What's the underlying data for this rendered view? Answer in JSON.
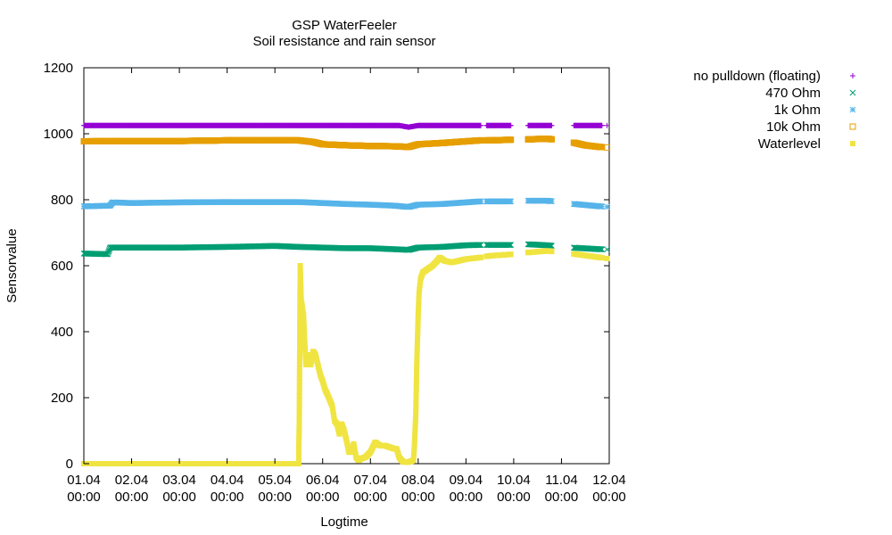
{
  "chart_data": {
    "type": "scatter",
    "title": "GSP WaterFeeler",
    "subtitle": "Soil resistance and rain sensor",
    "xlabel": "Logtime",
    "ylabel": "Sensorvalue",
    "xlim": [
      "01.04 00:00",
      "12.04 00:00"
    ],
    "ylim": [
      0,
      1200
    ],
    "x_unit": "days since 01.04 00:00",
    "x_ticks": [
      {
        "line1": "01.04",
        "line2": "00:00",
        "day": 0
      },
      {
        "line1": "02.04",
        "line2": "00:00",
        "day": 1
      },
      {
        "line1": "03.04",
        "line2": "00:00",
        "day": 2
      },
      {
        "line1": "04.04",
        "line2": "00:00",
        "day": 3
      },
      {
        "line1": "05.04",
        "line2": "00:00",
        "day": 4
      },
      {
        "line1": "06.04",
        "line2": "00:00",
        "day": 5
      },
      {
        "line1": "07.04",
        "line2": "00:00",
        "day": 6
      },
      {
        "line1": "08.04",
        "line2": "00:00",
        "day": 7
      },
      {
        "line1": "09.04",
        "line2": "00:00",
        "day": 8
      },
      {
        "line1": "10.04",
        "line2": "00:00",
        "day": 9
      },
      {
        "line1": "11.04",
        "line2": "00:00",
        "day": 10
      },
      {
        "line1": "12.04",
        "line2": "00:00",
        "day": 11
      }
    ],
    "y_ticks": [
      0,
      200,
      400,
      600,
      800,
      1000,
      1200
    ],
    "y_tick_labels": [
      "0",
      "200",
      "400",
      "600",
      "800",
      "1000",
      "1200"
    ],
    "grid": false,
    "legend_position": "outside-right-top",
    "series": [
      {
        "name": "no pulldown (floating)",
        "color": "#9400d3",
        "marker": "plus",
        "points": [
          [
            0,
            1025
          ],
          [
            1,
            1025
          ],
          [
            2,
            1025
          ],
          [
            3,
            1025
          ],
          [
            4,
            1025
          ],
          [
            5,
            1025
          ],
          [
            5.5,
            1025
          ],
          [
            6,
            1025
          ],
          [
            6.6,
            1025
          ],
          [
            6.8,
            1020
          ],
          [
            7,
            1025
          ],
          [
            7.5,
            1025
          ],
          [
            8,
            1025
          ],
          [
            8.3,
            1025
          ],
          [
            8.5,
            1025
          ],
          [
            9,
            1025
          ],
          [
            9.3,
            1025
          ],
          [
            9.7,
            1025
          ],
          [
            10.2,
            1025
          ],
          [
            10.8,
            1025
          ],
          [
            11.3,
            1025
          ]
        ],
        "gaps": [
          [
            8.32,
            8.42
          ],
          [
            8.95,
            9.3
          ],
          [
            9.8,
            10.25
          ],
          [
            10.85,
            10.95
          ]
        ]
      },
      {
        "name": "470 Ohm",
        "color": "#009e73",
        "marker": "x",
        "points": [
          [
            0,
            637
          ],
          [
            0.5,
            635
          ],
          [
            0.55,
            655
          ],
          [
            1,
            655
          ],
          [
            2,
            655
          ],
          [
            3,
            657
          ],
          [
            4,
            660
          ],
          [
            4.5,
            657
          ],
          [
            5,
            655
          ],
          [
            5.5,
            653
          ],
          [
            6,
            653
          ],
          [
            6.5,
            650
          ],
          [
            6.8,
            648
          ],
          [
            7,
            655
          ],
          [
            7.5,
            657
          ],
          [
            8,
            662
          ],
          [
            8.3,
            663
          ],
          [
            8.5,
            663
          ],
          [
            9,
            663
          ],
          [
            9.3,
            665
          ],
          [
            9.7,
            662
          ],
          [
            10.2,
            655
          ],
          [
            10.8,
            650
          ],
          [
            11.3,
            648
          ]
        ],
        "gaps": [
          [
            8.32,
            8.42
          ],
          [
            8.95,
            9.3
          ],
          [
            9.8,
            10.25
          ],
          [
            10.85,
            10.95
          ]
        ]
      },
      {
        "name": "1k Ohm",
        "color": "#56b4e9",
        "marker": "asterisk",
        "points": [
          [
            0,
            780
          ],
          [
            0.55,
            782
          ],
          [
            0.6,
            792
          ],
          [
            1,
            790
          ],
          [
            2,
            792
          ],
          [
            3,
            793
          ],
          [
            4,
            793
          ],
          [
            4.5,
            793
          ],
          [
            5,
            790
          ],
          [
            5.5,
            787
          ],
          [
            6,
            785
          ],
          [
            6.5,
            782
          ],
          [
            6.8,
            778
          ],
          [
            7,
            785
          ],
          [
            7.5,
            787
          ],
          [
            8,
            792
          ],
          [
            8.3,
            795
          ],
          [
            8.5,
            795
          ],
          [
            9,
            795
          ],
          [
            9.3,
            797
          ],
          [
            9.7,
            797
          ],
          [
            10.2,
            788
          ],
          [
            10.8,
            780
          ],
          [
            11.3,
            775
          ]
        ],
        "gaps": [
          [
            8.32,
            8.42
          ],
          [
            8.95,
            9.3
          ],
          [
            9.8,
            10.25
          ],
          [
            10.85,
            10.95
          ]
        ]
      },
      {
        "name": "10k Ohm",
        "color": "#e69f00",
        "marker": "square-open",
        "points": [
          [
            0,
            977
          ],
          [
            1,
            978
          ],
          [
            2,
            978
          ],
          [
            3,
            980
          ],
          [
            4,
            980
          ],
          [
            4.5,
            980
          ],
          [
            4.8,
            975
          ],
          [
            5,
            968
          ],
          [
            5.5,
            965
          ],
          [
            6,
            963
          ],
          [
            6.5,
            962
          ],
          [
            6.8,
            960
          ],
          [
            7,
            968
          ],
          [
            7.5,
            972
          ],
          [
            8,
            977
          ],
          [
            8.3,
            980
          ],
          [
            8.5,
            980
          ],
          [
            9,
            982
          ],
          [
            9.3,
            983
          ],
          [
            9.7,
            985
          ],
          [
            10.2,
            975
          ],
          [
            10.5,
            965
          ],
          [
            10.8,
            960
          ],
          [
            11.3,
            955
          ]
        ],
        "gaps": [
          [
            8.32,
            8.42
          ],
          [
            8.95,
            9.3
          ],
          [
            9.8,
            10.25
          ],
          [
            10.85,
            10.95
          ]
        ]
      },
      {
        "name": "Waterlevel",
        "color": "#f0e442",
        "marker": "square-filled",
        "points": [
          [
            0,
            0
          ],
          [
            1,
            0
          ],
          [
            2,
            0
          ],
          [
            3,
            0
          ],
          [
            4,
            0
          ],
          [
            4.45,
            0
          ],
          [
            4.5,
            0
          ],
          [
            4.5,
            40
          ],
          [
            4.51,
            120
          ],
          [
            4.53,
            600
          ],
          [
            4.55,
            500
          ],
          [
            4.6,
            450
          ],
          [
            4.62,
            380
          ],
          [
            4.65,
            300
          ],
          [
            4.7,
            330
          ],
          [
            4.75,
            300
          ],
          [
            4.8,
            340
          ],
          [
            4.85,
            330
          ],
          [
            4.9,
            300
          ],
          [
            4.95,
            270
          ],
          [
            5,
            250
          ],
          [
            5.05,
            225
          ],
          [
            5.1,
            210
          ],
          [
            5.2,
            175
          ],
          [
            5.25,
            130
          ],
          [
            5.3,
            120
          ],
          [
            5.35,
            90
          ],
          [
            5.4,
            120
          ],
          [
            5.45,
            100
          ],
          [
            5.5,
            70
          ],
          [
            5.55,
            35
          ],
          [
            5.6,
            35
          ],
          [
            5.65,
            60
          ],
          [
            5.7,
            20
          ],
          [
            5.75,
            10
          ],
          [
            5.8,
            15
          ],
          [
            5.9,
            20
          ],
          [
            6,
            35
          ],
          [
            6.05,
            50
          ],
          [
            6.1,
            65
          ],
          [
            6.2,
            55
          ],
          [
            6.3,
            55
          ],
          [
            6.4,
            50
          ],
          [
            6.5,
            45
          ],
          [
            6.55,
            45
          ],
          [
            6.6,
            20
          ],
          [
            6.65,
            10
          ],
          [
            6.7,
            5
          ],
          [
            6.8,
            5
          ],
          [
            6.9,
            10
          ],
          [
            6.92,
            50
          ],
          [
            6.95,
            150
          ],
          [
            6.97,
            300
          ],
          [
            7,
            450
          ],
          [
            7.02,
            520
          ],
          [
            7.05,
            560
          ],
          [
            7.1,
            580
          ],
          [
            7.2,
            590
          ],
          [
            7.3,
            600
          ],
          [
            7.4,
            615
          ],
          [
            7.45,
            625
          ],
          [
            7.55,
            615
          ],
          [
            7.7,
            610
          ],
          [
            8,
            620
          ],
          [
            8.3,
            625
          ],
          [
            8.5,
            630
          ],
          [
            9,
            635
          ],
          [
            9.3,
            640
          ],
          [
            9.7,
            645
          ],
          [
            10.2,
            637
          ],
          [
            10.8,
            625
          ],
          [
            11.3,
            615
          ]
        ],
        "gaps": [
          [
            8.32,
            8.42
          ],
          [
            8.95,
            9.3
          ],
          [
            9.8,
            10.25
          ],
          [
            10.85,
            10.95
          ]
        ]
      }
    ]
  }
}
